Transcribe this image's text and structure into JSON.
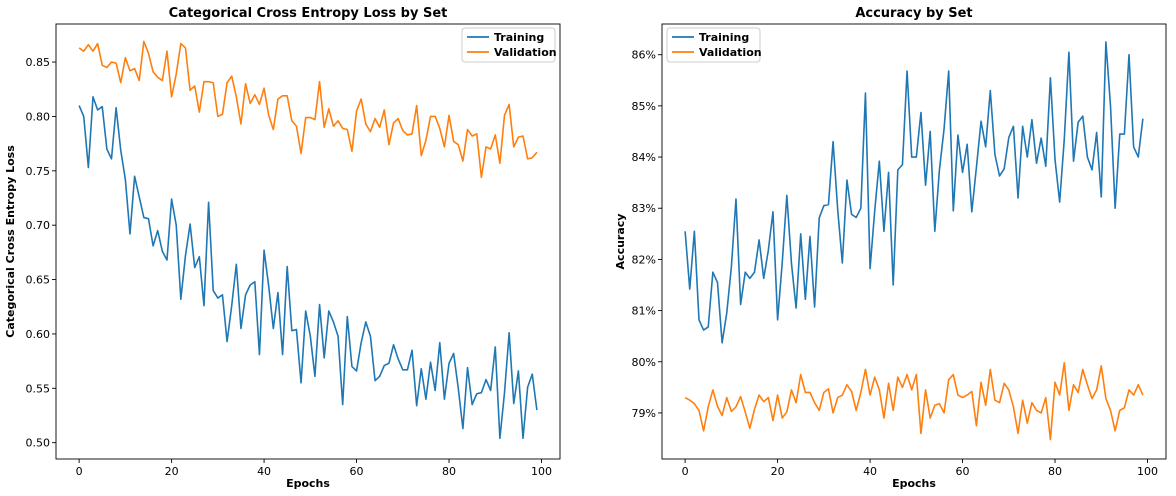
{
  "chart_data": [
    {
      "type": "line",
      "title": "Categorical Cross Entropy Loss by Set",
      "xlabel": "Epochs",
      "ylabel": "Categorical Cross Entropy Loss",
      "xlim": [
        -5,
        104
      ],
      "ylim": [
        0.485,
        0.885
      ],
      "xticks": [
        0,
        20,
        40,
        60,
        80,
        100
      ],
      "xtick_labels": [
        "0",
        "20",
        "40",
        "60",
        "80",
        "100"
      ],
      "yticks": [
        0.5,
        0.55,
        0.6,
        0.65,
        0.7,
        0.75,
        0.8,
        0.85
      ],
      "ytick_labels": [
        "0.50",
        "0.55",
        "0.60",
        "0.65",
        "0.70",
        "0.75",
        "0.80",
        "0.85"
      ],
      "grid": false,
      "legend": "top-right",
      "series": [
        {
          "name": "Training",
          "color": "#1f77b4",
          "values": [
            0.81,
            0.8,
            0.753,
            0.818,
            0.806,
            0.809,
            0.77,
            0.761,
            0.808,
            0.769,
            0.742,
            0.692,
            0.745,
            0.726,
            0.707,
            0.706,
            0.681,
            0.695,
            0.676,
            0.668,
            0.724,
            0.7,
            0.632,
            0.672,
            0.701,
            0.661,
            0.671,
            0.626,
            0.721,
            0.64,
            0.633,
            0.636,
            0.593,
            0.626,
            0.664,
            0.605,
            0.636,
            0.645,
            0.648,
            0.581,
            0.677,
            0.644,
            0.605,
            0.638,
            0.581,
            0.662,
            0.603,
            0.604,
            0.555,
            0.621,
            0.598,
            0.561,
            0.627,
            0.578,
            0.621,
            0.611,
            0.598,
            0.535,
            0.616,
            0.57,
            0.566,
            0.592,
            0.611,
            0.598,
            0.557,
            0.561,
            0.571,
            0.573,
            0.59,
            0.577,
            0.567,
            0.567,
            0.585,
            0.534,
            0.568,
            0.54,
            0.574,
            0.548,
            0.592,
            0.54,
            0.573,
            0.582,
            0.55,
            0.513,
            0.569,
            0.535,
            0.545,
            0.546,
            0.558,
            0.548,
            0.588,
            0.504,
            0.546,
            0.601,
            0.536,
            0.566,
            0.504,
            0.551,
            0.563,
            0.53
          ]
        },
        {
          "name": "Validation",
          "color": "#ff7f0e",
          "values": [
            0.863,
            0.86,
            0.866,
            0.86,
            0.867,
            0.847,
            0.845,
            0.85,
            0.849,
            0.831,
            0.854,
            0.842,
            0.844,
            0.833,
            0.869,
            0.858,
            0.841,
            0.836,
            0.833,
            0.86,
            0.818,
            0.839,
            0.867,
            0.863,
            0.824,
            0.828,
            0.804,
            0.832,
            0.832,
            0.831,
            0.8,
            0.802,
            0.831,
            0.837,
            0.818,
            0.793,
            0.83,
            0.812,
            0.82,
            0.811,
            0.826,
            0.801,
            0.788,
            0.816,
            0.819,
            0.819,
            0.796,
            0.791,
            0.766,
            0.799,
            0.799,
            0.797,
            0.832,
            0.79,
            0.807,
            0.791,
            0.796,
            0.789,
            0.788,
            0.768,
            0.805,
            0.816,
            0.793,
            0.786,
            0.798,
            0.79,
            0.806,
            0.774,
            0.794,
            0.798,
            0.787,
            0.783,
            0.784,
            0.81,
            0.764,
            0.778,
            0.8,
            0.8,
            0.789,
            0.772,
            0.801,
            0.777,
            0.774,
            0.759,
            0.788,
            0.782,
            0.784,
            0.744,
            0.772,
            0.77,
            0.783,
            0.757,
            0.801,
            0.811,
            0.772,
            0.781,
            0.782,
            0.761,
            0.762,
            0.767
          ]
        }
      ]
    },
    {
      "type": "line",
      "title": "Accuracy by Set",
      "xlabel": "Epochs",
      "ylabel": "Accuracy",
      "xlim": [
        -5,
        104
      ],
      "ylim": [
        78.1,
        86.6
      ],
      "xticks": [
        0,
        20,
        40,
        60,
        80,
        100
      ],
      "xtick_labels": [
        "0",
        "20",
        "40",
        "60",
        "80",
        "100"
      ],
      "yticks": [
        79,
        80,
        81,
        82,
        83,
        84,
        85,
        86
      ],
      "ytick_labels": [
        "79%",
        "80%",
        "81%",
        "82%",
        "83%",
        "84%",
        "85%",
        "86%"
      ],
      "grid": false,
      "legend": "top-left",
      "series": [
        {
          "name": "Training",
          "color": "#1f77b4",
          "values": [
            82.55,
            81.42,
            82.55,
            80.82,
            80.62,
            80.68,
            81.75,
            81.55,
            80.37,
            80.95,
            81.85,
            83.18,
            81.12,
            81.75,
            81.63,
            81.75,
            82.38,
            81.63,
            82.18,
            82.93,
            80.82,
            81.93,
            83.25,
            81.92,
            81.05,
            82.5,
            81.22,
            82.45,
            81.07,
            82.81,
            83.05,
            83.07,
            84.3,
            82.97,
            81.93,
            83.55,
            82.88,
            82.82,
            83.0,
            85.25,
            81.82,
            82.95,
            83.92,
            82.55,
            83.7,
            81.5,
            83.75,
            83.85,
            85.68,
            84.0,
            84.0,
            84.87,
            83.45,
            84.5,
            82.55,
            83.75,
            84.55,
            85.68,
            82.95,
            84.43,
            83.7,
            84.25,
            82.93,
            83.8,
            84.7,
            84.2,
            85.3,
            84.05,
            83.63,
            83.77,
            84.38,
            84.6,
            83.2,
            84.6,
            84.0,
            84.73,
            83.88,
            84.37,
            83.82,
            85.55,
            83.95,
            83.12,
            84.35,
            86.05,
            83.92,
            84.68,
            84.8,
            84.0,
            83.75,
            84.48,
            83.22,
            86.25,
            85.0,
            83.0,
            84.45,
            84.45,
            86.0,
            84.2,
            84.0,
            84.75
          ]
        },
        {
          "name": "Validation",
          "color": "#ff7f0e",
          "values": [
            79.3,
            79.25,
            79.18,
            79.05,
            78.65,
            79.12,
            79.45,
            79.13,
            78.95,
            79.3,
            79.03,
            79.12,
            79.32,
            79.02,
            78.7,
            79.07,
            79.35,
            79.22,
            79.3,
            78.85,
            79.35,
            78.9,
            79.02,
            79.45,
            79.2,
            79.75,
            79.4,
            79.4,
            79.2,
            79.05,
            79.4,
            79.47,
            79.0,
            79.3,
            79.35,
            79.55,
            79.42,
            79.05,
            79.4,
            79.85,
            79.35,
            79.7,
            79.45,
            78.9,
            79.58,
            79.05,
            79.7,
            79.5,
            79.75,
            79.45,
            79.75,
            78.6,
            79.45,
            78.9,
            79.15,
            79.18,
            79.0,
            79.65,
            79.75,
            79.35,
            79.3,
            79.35,
            79.42,
            78.75,
            79.6,
            79.15,
            79.85,
            79.25,
            79.2,
            79.58,
            79.45,
            79.12,
            78.6,
            79.25,
            78.8,
            79.2,
            79.05,
            79.0,
            79.3,
            78.48,
            79.6,
            79.35,
            79.98,
            79.05,
            79.55,
            79.4,
            79.85,
            79.55,
            79.28,
            79.45,
            79.92,
            79.28,
            79.05,
            78.65,
            79.05,
            79.1,
            79.45,
            79.35,
            79.55,
            79.35
          ]
        }
      ]
    }
  ]
}
